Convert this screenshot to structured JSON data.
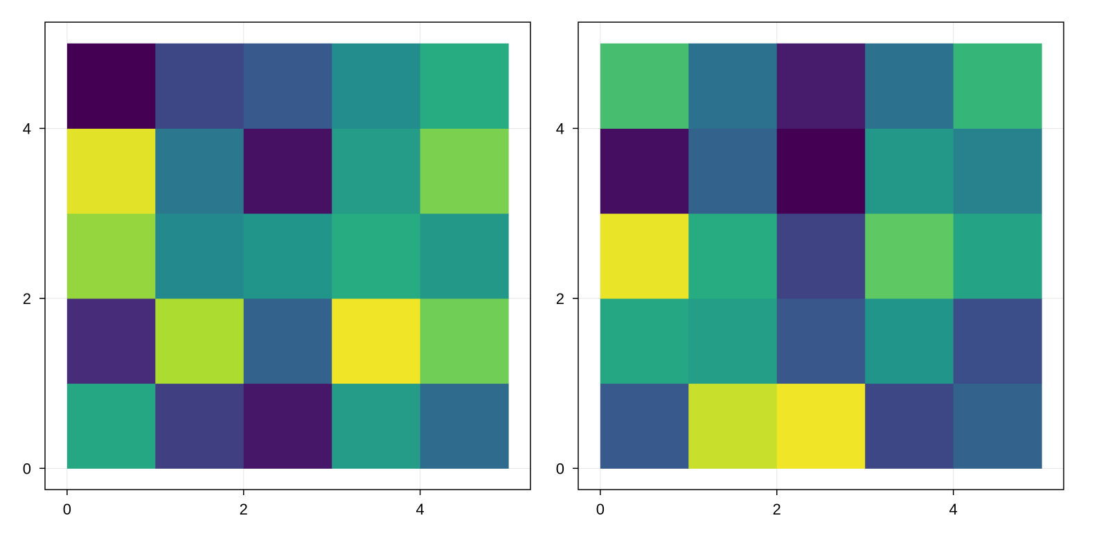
{
  "chart_data": [
    {
      "type": "heatmap",
      "title": "",
      "xlabel": "",
      "ylabel": "",
      "x_edges": [
        0,
        1,
        2,
        3,
        4,
        5
      ],
      "y_edges": [
        0,
        1,
        2,
        3,
        4,
        5
      ],
      "xlim": [
        -0.25,
        5.25
      ],
      "ylim": [
        -0.25,
        5.25
      ],
      "xticks": [
        0,
        2,
        4
      ],
      "yticks": [
        0,
        2,
        4
      ],
      "xtick_labels": [
        "0",
        "2",
        "4"
      ],
      "ytick_labels": [
        "0",
        "2",
        "4"
      ],
      "colormap": "viridis",
      "value_range": [
        0,
        1
      ],
      "grid": true,
      "values_rows_bottom_to_top": [
        [
          0.6,
          0.2,
          0.08,
          0.55,
          0.35
        ],
        [
          0.15,
          0.88,
          0.32,
          0.98,
          0.78
        ],
        [
          0.84,
          0.47,
          0.52,
          0.62,
          0.53
        ],
        [
          0.96,
          0.4,
          0.06,
          0.55,
          0.8
        ],
        [
          0.0,
          0.22,
          0.28,
          0.48,
          0.62
        ]
      ]
    },
    {
      "type": "heatmap",
      "title": "",
      "xlabel": "",
      "ylabel": "",
      "x_edges": [
        0,
        1,
        2,
        3,
        4,
        5
      ],
      "y_edges": [
        0,
        1,
        2,
        3,
        4,
        5
      ],
      "xlim": [
        -0.25,
        5.25
      ],
      "ylim": [
        -0.25,
        5.25
      ],
      "xticks": [
        0,
        2,
        4
      ],
      "yticks": [
        0,
        2,
        4
      ],
      "xtick_labels": [
        "0",
        "2",
        "4"
      ],
      "ytick_labels": [
        "0",
        "2",
        "4"
      ],
      "colormap": "viridis",
      "value_range": [
        0,
        1
      ],
      "grid": true,
      "values_rows_bottom_to_top": [
        [
          0.28,
          0.92,
          0.98,
          0.22,
          0.32
        ],
        [
          0.6,
          0.56,
          0.27,
          0.52,
          0.24
        ],
        [
          0.97,
          0.62,
          0.21,
          0.75,
          0.58
        ],
        [
          0.05,
          0.32,
          0.0,
          0.53,
          0.44
        ],
        [
          0.7,
          0.38,
          0.1,
          0.38,
          0.66
        ]
      ]
    }
  ]
}
